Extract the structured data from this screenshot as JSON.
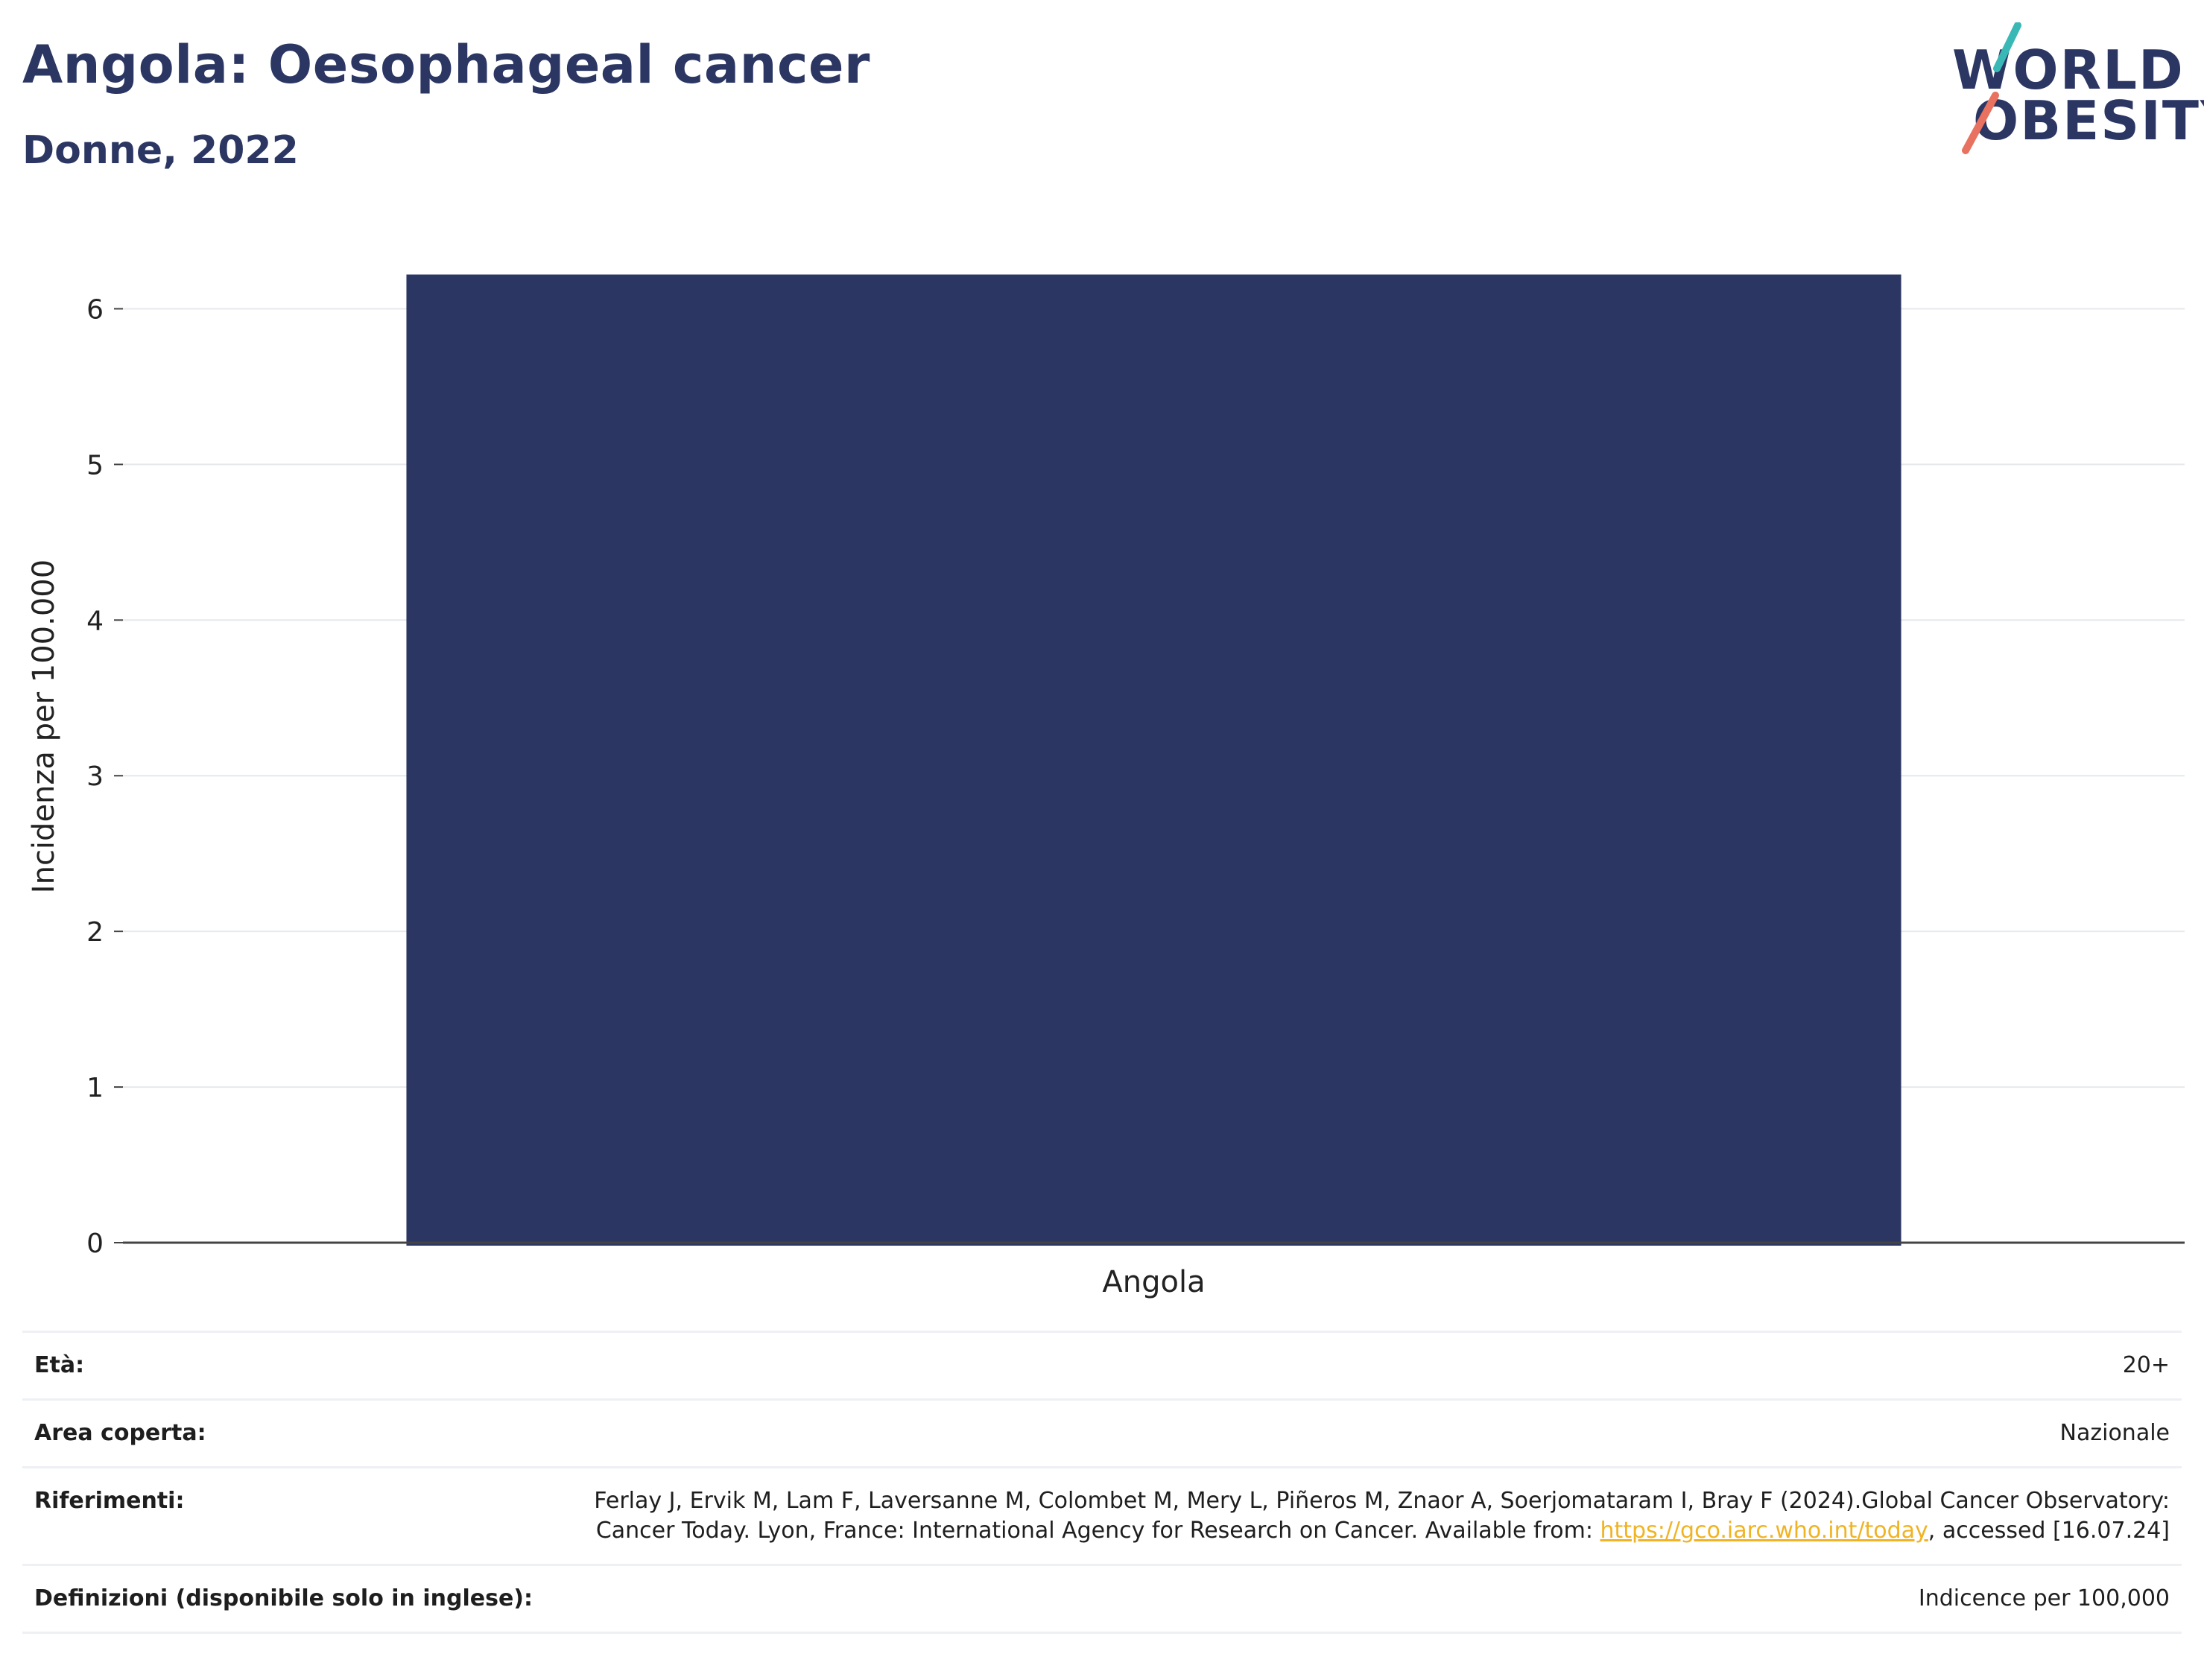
{
  "header": {
    "title": "Angola: Oesophageal cancer",
    "subtitle": "Donne, 2022"
  },
  "logo": {
    "line1": "WORLD",
    "line2": "OBESITY",
    "colors": {
      "text": "#2b3663",
      "slash_top": "#3ab8b5",
      "slash_bottom": "#e8715f"
    }
  },
  "chart_data": {
    "type": "bar",
    "categories": [
      "Angola"
    ],
    "values": [
      6.22
    ],
    "title": "",
    "xlabel": "",
    "ylabel": "Incidenza per 100.000",
    "ylim": [
      0,
      6.5
    ],
    "yticks": [
      0,
      1,
      2,
      3,
      4,
      5,
      6
    ],
    "grid": true,
    "bar_color": "#2b3663"
  },
  "info": {
    "rows": [
      {
        "label": "Età:",
        "value": "20+"
      },
      {
        "label": "Area coperta:",
        "value": "Nazionale"
      },
      {
        "label": "Riferimenti:",
        "value_before": "Ferlay J, Ervik M, Lam F, Laversanne M, Colombet M, Mery L, Piñeros M, Znaor A, Soerjomataram I, Bray F (2024).Global Cancer Observatory: Cancer Today. Lyon, France: International Agency for Research on Cancer. Available from: ",
        "link": "https://gco.iarc.who.int/today",
        "value_after": ", accessed [16.07.24]"
      },
      {
        "label": "Definizioni (disponibile solo in inglese):",
        "value": "Indicence per 100,000"
      }
    ]
  }
}
